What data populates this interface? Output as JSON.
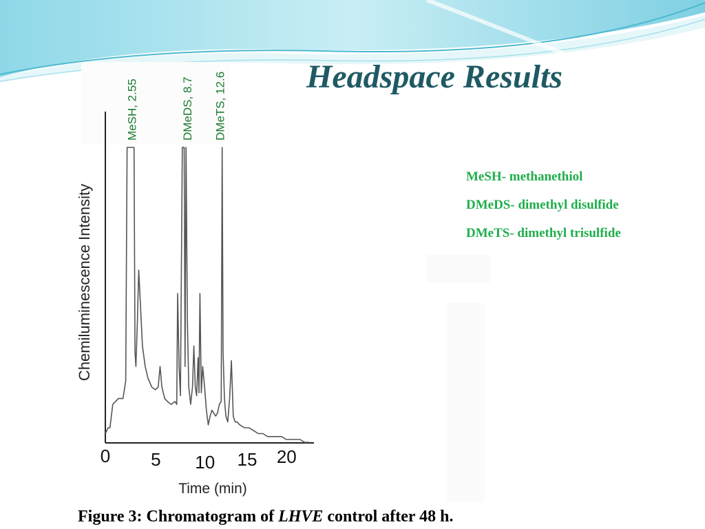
{
  "slide": {
    "title": "Headspace Results",
    "legend": [
      "MeSH- methanethiol",
      "DMeDS- dimethyl disulfide",
      "DMeTS- dimethyl trisulfide"
    ],
    "caption": {
      "prefix": "Figure 3: Chromatogram of",
      "italic": "LHVE",
      "suffix": "control after 48 h."
    },
    "colors": {
      "title": "#1f5a63",
      "legend_text": "#1fae4b",
      "peak_label": "#1a7a2e",
      "trace": "#555555",
      "swoosh_light": "#bfe9f2",
      "swoosh_dark": "#5cc3d8"
    }
  },
  "chart_data": {
    "type": "line",
    "xlabel": "Time (min)",
    "ylabel": "Chemiluminescence Intensity",
    "xlim": [
      0,
      22.5
    ],
    "ylim": [
      0,
      100
    ],
    "x_ticks": [
      "0",
      "5",
      "10",
      "15",
      "20"
    ],
    "grid": false,
    "peak_labels": [
      {
        "text": "MeSH, 2.55",
        "x": 2.55
      },
      {
        "text": "DMeDS, 8.7",
        "x": 8.7
      },
      {
        "text": "DMeTS, 12.6",
        "x": 12.6
      }
    ],
    "series": [
      {
        "x": [
          0.0,
          0.3,
          0.5,
          0.8,
          1.1,
          1.4,
          1.6,
          1.9,
          2.2,
          2.35,
          2.45,
          2.55,
          3.1,
          3.2,
          3.3,
          3.45,
          3.6,
          3.8,
          4.0,
          4.3,
          4.6,
          5.0,
          5.4,
          5.7,
          5.9,
          6.1,
          6.4,
          6.7,
          7.1,
          7.5,
          7.7,
          7.8,
          7.95,
          8.1,
          8.3,
          8.5,
          8.6,
          8.7,
          8.85,
          9.0,
          9.2,
          9.4,
          9.55,
          9.7,
          9.85,
          10.0,
          10.1,
          10.2,
          10.35,
          10.5,
          10.7,
          10.9,
          11.1,
          11.3,
          11.5,
          11.7,
          11.9,
          12.1,
          12.3,
          12.5,
          12.6,
          12.7,
          12.85,
          13.0,
          13.2,
          13.4,
          13.6,
          13.8,
          14.0,
          14.2,
          14.5,
          15.0,
          15.5,
          16.0,
          16.5,
          17.0,
          17.5,
          18.0,
          18.5,
          19.0,
          19.5,
          20.0,
          20.5,
          21.0,
          21.5,
          22.0
        ],
        "y": [
          2,
          4,
          4,
          12,
          13,
          14,
          14,
          14,
          20,
          100,
          100,
          100,
          100,
          30,
          25,
          40,
          58,
          45,
          32,
          25,
          21,
          18,
          17,
          18,
          25,
          18,
          14,
          13,
          12,
          13,
          12,
          50,
          25,
          15,
          100,
          100,
          25,
          100,
          40,
          18,
          12,
          18,
          32,
          18,
          15,
          28,
          16,
          50,
          16,
          25,
          18,
          10,
          5,
          8,
          10,
          9,
          8,
          9,
          12,
          13,
          100,
          30,
          14,
          8,
          6,
          14,
          27,
          8,
          6,
          6,
          5,
          4,
          4,
          3,
          2,
          2,
          1,
          1,
          1,
          1,
          0,
          0,
          0,
          0,
          -1,
          -1
        ]
      }
    ]
  }
}
